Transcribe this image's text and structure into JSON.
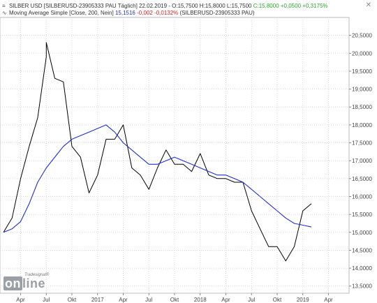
{
  "header": {
    "line1_prefix": "SILBER USD [SILBERUSD-23905333 PAU  Täglich]  22.02.2019 - O:15,7500  H:15,8000  L:15,7500",
    "line1_close": "C:15,8000",
    "line1_change": "+0,0500",
    "line1_pct": "+0,3175%",
    "line2_prefix": "Moving Average Simple [Close, 200, Nein]",
    "line2_value": "15,1516",
    "line2_change": "-0,002",
    "line2_pct": "-0,0132%",
    "line2_suffix": "(SILBERUSD-23905333 PAU)"
  },
  "logo": {
    "small": "Tradesignal®",
    "big_on": "on",
    "big_line": "line"
  },
  "close_label": "✕",
  "colors": {
    "price": "#000000",
    "ma": "#1f2fd0",
    "grid": "#d8d8d8",
    "axis_text": "#444444"
  },
  "chart_data": {
    "type": "line",
    "title": "",
    "xlabel": "",
    "ylabel": "",
    "ylim": [
      13.3,
      21.0
    ],
    "grid": true,
    "y_axis_position": "right",
    "y_ticks": [
      "20,5000",
      "20,0000",
      "19,5000",
      "19,0000",
      "18,5000",
      "18,0000",
      "17,5000",
      "17,0000",
      "16,5000",
      "16,0000",
      "15,5000",
      "15,0000",
      "14,5000",
      "14,0000",
      "13,5000"
    ],
    "x_ticks": [
      "Apr",
      "Jul",
      "Okt",
      "2017",
      "Apr",
      "Jul",
      "Okt",
      "2018",
      "Apr",
      "Jul",
      "Okt",
      "2019",
      "Apr"
    ],
    "x_tick_dates": [
      "2016-04",
      "2016-07",
      "2016-10",
      "2017-01",
      "2017-04",
      "2017-07",
      "2017-10",
      "2018-01",
      "2018-04",
      "2018-07",
      "2018-10",
      "2019-01",
      "2019-04"
    ],
    "series": [
      {
        "name": "SILBER USD",
        "color": "#000000",
        "x": [
          "2016-02",
          "2016-03",
          "2016-04",
          "2016-05",
          "2016-06",
          "2016-07",
          "2016-07",
          "2016-08",
          "2016-09",
          "2016-10",
          "2016-11",
          "2016-12",
          "2017-01",
          "2017-02",
          "2017-03",
          "2017-04",
          "2017-05",
          "2017-06",
          "2017-07",
          "2017-08",
          "2017-09",
          "2017-10",
          "2017-11",
          "2017-12",
          "2018-01",
          "2018-02",
          "2018-03",
          "2018-04",
          "2018-05",
          "2018-06",
          "2018-07",
          "2018-08",
          "2018-09",
          "2018-10",
          "2018-11",
          "2018-12",
          "2019-01",
          "2019-02"
        ],
        "values": [
          15.0,
          15.4,
          16.5,
          17.4,
          18.2,
          19.9,
          20.3,
          19.3,
          19.2,
          17.4,
          17.1,
          16.1,
          16.6,
          17.6,
          17.6,
          18.0,
          16.8,
          16.6,
          16.2,
          16.8,
          17.3,
          16.9,
          16.9,
          16.7,
          17.2,
          16.6,
          16.5,
          16.5,
          16.4,
          16.4,
          15.6,
          15.1,
          14.6,
          14.6,
          14.2,
          14.6,
          15.6,
          15.8
        ]
      },
      {
        "name": "Moving Average Simple [Close, 200, Nein]",
        "color": "#1f2fd0",
        "x": [
          "2016-02",
          "2016-03",
          "2016-04",
          "2016-05",
          "2016-06",
          "2016-07",
          "2016-08",
          "2016-09",
          "2016-10",
          "2016-11",
          "2016-12",
          "2017-01",
          "2017-02",
          "2017-03",
          "2017-04",
          "2017-05",
          "2017-06",
          "2017-07",
          "2017-08",
          "2017-09",
          "2017-10",
          "2017-11",
          "2017-12",
          "2018-01",
          "2018-02",
          "2018-03",
          "2018-04",
          "2018-05",
          "2018-06",
          "2018-07",
          "2018-08",
          "2018-09",
          "2018-10",
          "2018-11",
          "2018-12",
          "2019-01",
          "2019-02"
        ],
        "values": [
          15.0,
          15.1,
          15.3,
          15.8,
          16.4,
          16.8,
          17.1,
          17.4,
          17.6,
          17.7,
          17.8,
          17.9,
          18.0,
          17.8,
          17.5,
          17.3,
          17.1,
          16.9,
          16.9,
          17.0,
          17.1,
          17.0,
          16.9,
          16.8,
          16.7,
          16.6,
          16.6,
          16.5,
          16.4,
          16.2,
          16.0,
          15.8,
          15.6,
          15.4,
          15.25,
          15.2,
          15.15
        ]
      }
    ]
  }
}
